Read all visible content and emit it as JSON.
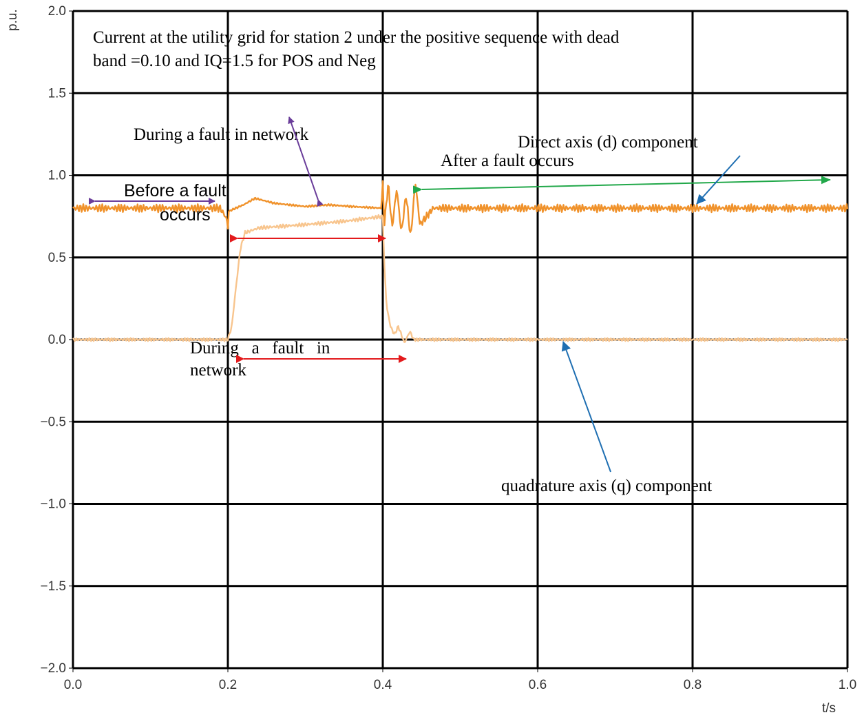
{
  "chart_data": {
    "type": "line",
    "title": "Current  at the utility grid for station 2 under the positive sequence with dead band =0.10 and IQ=1.5 for POS and Neg",
    "title_lines": [
      "Current  at the utility grid for station 2 under the positive sequence with dead",
      "band =0.10 and IQ=1.5 for POS and Neg"
    ],
    "xlabel": "t/s",
    "ylabel": "p.u.",
    "xlim": [
      0.0,
      1.0
    ],
    "ylim": [
      -2.0,
      2.0
    ],
    "x_ticks": [
      "0.0",
      "0.2",
      "0.4",
      "0.6",
      "0.8",
      "1.0"
    ],
    "y_ticks": [
      "2.0",
      "1.5",
      "1.0",
      "0.5",
      "0.0",
      "−0.5",
      "−1.0",
      "−1.5",
      "−2.0"
    ],
    "grid": true,
    "series": [
      {
        "key": "d",
        "color": "#f0922b",
        "x": [
          0.0,
          0.1,
          0.19,
          0.198,
          0.2,
          0.201,
          0.21,
          0.22,
          0.235,
          0.26,
          0.3,
          0.33,
          0.36,
          0.398,
          0.4,
          0.402,
          0.407,
          0.412,
          0.418,
          0.424,
          0.43,
          0.436,
          0.442,
          0.448,
          0.455,
          0.465,
          0.5,
          0.6,
          0.7,
          0.8,
          0.9,
          1.0
        ],
        "y": [
          0.8,
          0.8,
          0.8,
          0.74,
          0.68,
          0.78,
          0.8,
          0.82,
          0.86,
          0.83,
          0.81,
          0.82,
          0.81,
          0.8,
          0.95,
          0.7,
          0.95,
          0.68,
          0.92,
          0.65,
          0.88,
          0.62,
          0.96,
          0.7,
          0.74,
          0.8,
          0.8,
          0.8,
          0.8,
          0.8,
          0.8,
          0.8
        ]
      },
      {
        "key": "q",
        "color": "#f8c58e",
        "x": [
          0.0,
          0.1,
          0.16,
          0.195,
          0.2,
          0.205,
          0.21,
          0.216,
          0.222,
          0.24,
          0.3,
          0.35,
          0.4,
          0.402,
          0.405,
          0.41,
          0.415,
          0.42,
          0.428,
          0.435,
          0.44,
          0.46,
          0.5,
          0.6,
          0.7,
          0.8,
          0.9,
          1.0
        ],
        "y": [
          0.0,
          0.0,
          0.0,
          0.0,
          0.0,
          0.08,
          0.3,
          0.55,
          0.65,
          0.68,
          0.7,
          0.72,
          0.75,
          0.45,
          0.2,
          0.08,
          0.03,
          0.08,
          -0.02,
          0.05,
          0.0,
          0.0,
          0.0,
          0.0,
          0.0,
          0.0,
          0.0,
          0.0
        ]
      }
    ],
    "annotations": [
      {
        "id": "before",
        "lines": [
          "Before a fault",
          "occurs"
        ]
      },
      {
        "id": "during-top",
        "lines": [
          "During a fault in network"
        ]
      },
      {
        "id": "after",
        "lines": [
          "After a fault occurs"
        ]
      },
      {
        "id": "d-label",
        "lines": [
          "Direct axis (d) component"
        ]
      },
      {
        "id": "q-label",
        "lines": [
          "quadrature axis (q) component"
        ]
      },
      {
        "id": "during-bottom",
        "lines": [
          "During   a   fault   in",
          "network"
        ]
      }
    ],
    "arrow_colors": {
      "purple": "#6a3d9a",
      "red": "#e31a1c",
      "green": "#22a84a",
      "blue": "#1f6fb2"
    }
  }
}
